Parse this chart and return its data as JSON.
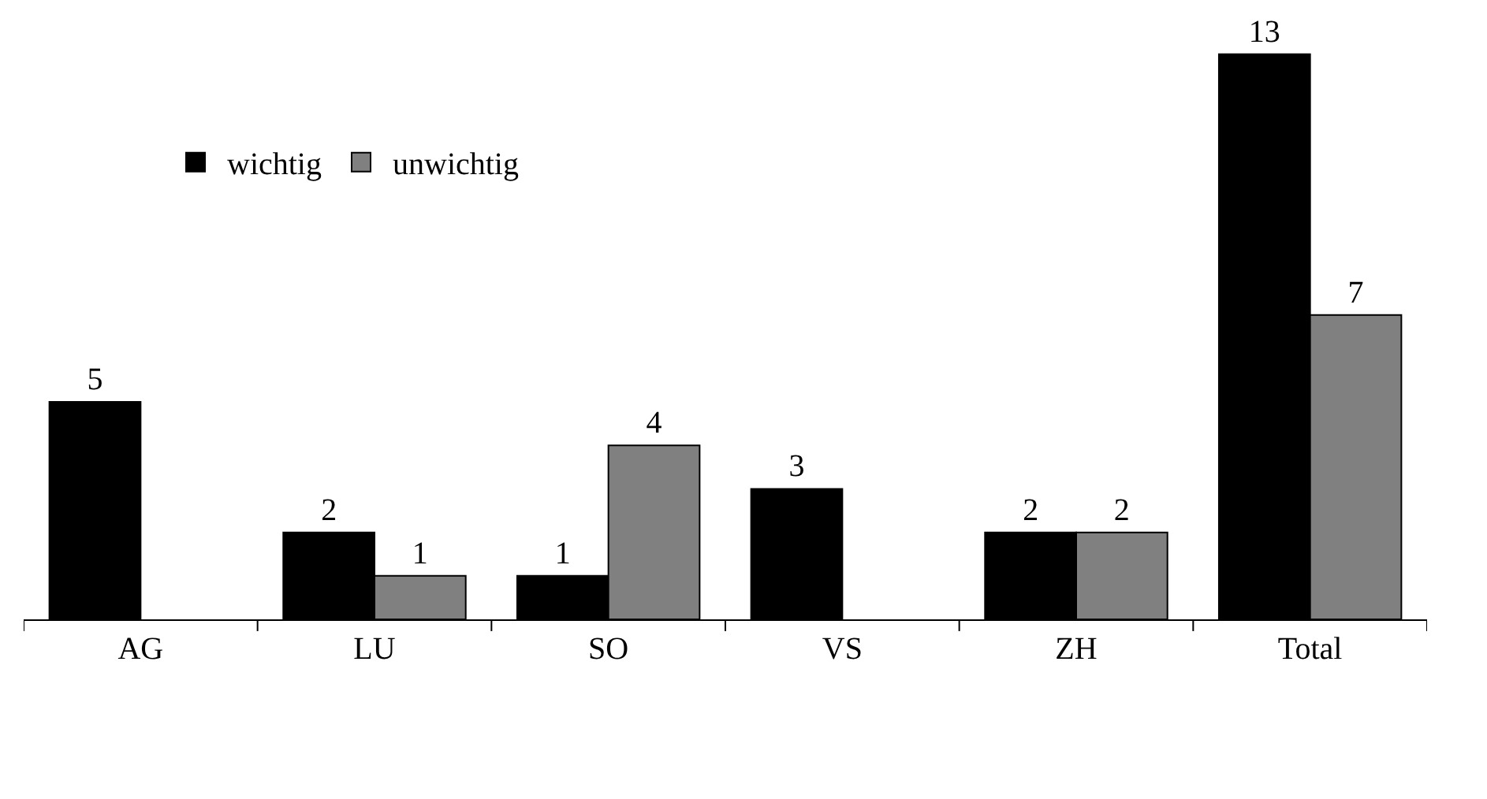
{
  "chart_data": {
    "type": "bar",
    "categories": [
      "AG",
      "LU",
      "SO",
      "VS",
      "ZH",
      "Total"
    ],
    "series": [
      {
        "name": "wichtig",
        "color": "#000000",
        "values": [
          5,
          2,
          1,
          3,
          2,
          13
        ]
      },
      {
        "name": "unwichtig",
        "color": "#808080",
        "values": [
          null,
          1,
          4,
          null,
          2,
          7
        ]
      }
    ],
    "data_labels": true,
    "legend": "top left"
  }
}
